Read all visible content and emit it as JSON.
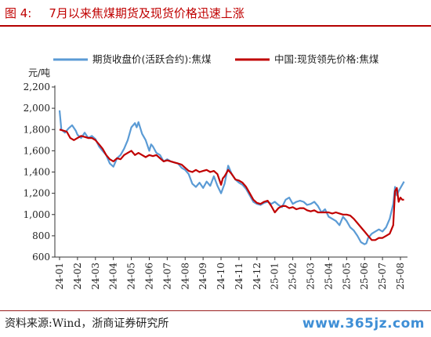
{
  "figure": {
    "label": "图 4:",
    "title": "7月以来焦煤期货及现货价格迅速上涨",
    "source": "资料来源:Wind，浙商证券研究所",
    "watermark": "www.365jz.com"
  },
  "chart_data": {
    "type": "line",
    "ylabel": "元/吨",
    "ylim": [
      600,
      2200
    ],
    "yticks": [
      "600",
      "800",
      "1,000",
      "1,200",
      "1,400",
      "1,600",
      "1,800",
      "2,000",
      "2,200"
    ],
    "xticks": [
      "24-01",
      "24-02",
      "24-03",
      "24-04",
      "24-05",
      "24-06",
      "24-07",
      "24-08",
      "24-09",
      "24-10",
      "24-11",
      "24-12",
      "25-01",
      "25-02",
      "25-03",
      "25-04",
      "25-05",
      "25-06",
      "25-07",
      "25-08"
    ],
    "grid": false,
    "legend": "top",
    "series": [
      {
        "name": "期货收盘价(活跃合约):焦煤",
        "color": "#5b9bd5",
        "points": [
          [
            0.0,
            1980
          ],
          [
            0.1,
            1800
          ],
          [
            0.3,
            1770
          ],
          [
            0.5,
            1810
          ],
          [
            0.7,
            1840
          ],
          [
            0.9,
            1790
          ],
          [
            1.0,
            1750
          ],
          [
            1.2,
            1720
          ],
          [
            1.4,
            1770
          ],
          [
            1.6,
            1720
          ],
          [
            1.8,
            1740
          ],
          [
            2.0,
            1710
          ],
          [
            2.2,
            1640
          ],
          [
            2.4,
            1600
          ],
          [
            2.6,
            1560
          ],
          [
            2.8,
            1480
          ],
          [
            3.0,
            1450
          ],
          [
            3.2,
            1530
          ],
          [
            3.4,
            1560
          ],
          [
            3.6,
            1620
          ],
          [
            3.8,
            1700
          ],
          [
            4.0,
            1820
          ],
          [
            4.2,
            1860
          ],
          [
            4.3,
            1820
          ],
          [
            4.4,
            1870
          ],
          [
            4.6,
            1760
          ],
          [
            4.8,
            1700
          ],
          [
            5.0,
            1600
          ],
          [
            5.1,
            1660
          ],
          [
            5.2,
            1640
          ],
          [
            5.4,
            1580
          ],
          [
            5.6,
            1560
          ],
          [
            5.8,
            1500
          ],
          [
            6.0,
            1520
          ],
          [
            6.2,
            1500
          ],
          [
            6.4,
            1490
          ],
          [
            6.6,
            1480
          ],
          [
            6.8,
            1440
          ],
          [
            7.0,
            1420
          ],
          [
            7.2,
            1380
          ],
          [
            7.4,
            1290
          ],
          [
            7.6,
            1260
          ],
          [
            7.8,
            1300
          ],
          [
            8.0,
            1250
          ],
          [
            8.2,
            1310
          ],
          [
            8.4,
            1270
          ],
          [
            8.6,
            1360
          ],
          [
            8.8,
            1270
          ],
          [
            9.0,
            1200
          ],
          [
            9.2,
            1290
          ],
          [
            9.4,
            1460
          ],
          [
            9.6,
            1380
          ],
          [
            9.8,
            1330
          ],
          [
            10.0,
            1300
          ],
          [
            10.2,
            1280
          ],
          [
            10.4,
            1240
          ],
          [
            10.6,
            1180
          ],
          [
            10.8,
            1120
          ],
          [
            11.0,
            1100
          ],
          [
            11.2,
            1090
          ],
          [
            11.4,
            1110
          ],
          [
            11.6,
            1120
          ],
          [
            11.8,
            1100
          ],
          [
            12.0,
            1120
          ],
          [
            12.2,
            1090
          ],
          [
            12.4,
            1070
          ],
          [
            12.6,
            1140
          ],
          [
            12.8,
            1160
          ],
          [
            13.0,
            1100
          ],
          [
            13.2,
            1120
          ],
          [
            13.4,
            1130
          ],
          [
            13.6,
            1120
          ],
          [
            13.8,
            1090
          ],
          [
            14.0,
            1100
          ],
          [
            14.2,
            1120
          ],
          [
            14.4,
            1080
          ],
          [
            14.6,
            1020
          ],
          [
            14.8,
            1050
          ],
          [
            15.0,
            980
          ],
          [
            15.2,
            960
          ],
          [
            15.4,
            940
          ],
          [
            15.6,
            900
          ],
          [
            15.8,
            980
          ],
          [
            16.0,
            940
          ],
          [
            16.2,
            880
          ],
          [
            16.4,
            850
          ],
          [
            16.6,
            800
          ],
          [
            16.8,
            740
          ],
          [
            17.0,
            720
          ],
          [
            17.1,
            730
          ],
          [
            17.2,
            780
          ],
          [
            17.4,
            820
          ],
          [
            17.6,
            840
          ],
          [
            17.8,
            860
          ],
          [
            18.0,
            840
          ],
          [
            18.2,
            880
          ],
          [
            18.4,
            960
          ],
          [
            18.6,
            1100
          ],
          [
            18.7,
            1260
          ],
          [
            18.8,
            1180
          ],
          [
            18.9,
            1220
          ],
          [
            19.0,
            1250
          ],
          [
            19.1,
            1280
          ],
          [
            19.2,
            1310
          ]
        ]
      },
      {
        "name": "中国:现货领先价格:焦煤",
        "color": "#c00000",
        "points": [
          [
            0.0,
            1800
          ],
          [
            0.2,
            1790
          ],
          [
            0.4,
            1780
          ],
          [
            0.6,
            1720
          ],
          [
            0.8,
            1700
          ],
          [
            1.0,
            1720
          ],
          [
            1.2,
            1740
          ],
          [
            1.4,
            1730
          ],
          [
            1.6,
            1720
          ],
          [
            1.8,
            1720
          ],
          [
            2.0,
            1700
          ],
          [
            2.2,
            1660
          ],
          [
            2.4,
            1620
          ],
          [
            2.6,
            1560
          ],
          [
            2.8,
            1520
          ],
          [
            3.0,
            1500
          ],
          [
            3.2,
            1530
          ],
          [
            3.4,
            1520
          ],
          [
            3.6,
            1560
          ],
          [
            3.8,
            1580
          ],
          [
            4.0,
            1600
          ],
          [
            4.2,
            1560
          ],
          [
            4.4,
            1580
          ],
          [
            4.6,
            1560
          ],
          [
            4.8,
            1540
          ],
          [
            5.0,
            1560
          ],
          [
            5.2,
            1550
          ],
          [
            5.4,
            1560
          ],
          [
            5.6,
            1530
          ],
          [
            5.8,
            1500
          ],
          [
            6.0,
            1510
          ],
          [
            6.2,
            1500
          ],
          [
            6.4,
            1490
          ],
          [
            6.6,
            1480
          ],
          [
            6.8,
            1470
          ],
          [
            7.0,
            1440
          ],
          [
            7.2,
            1410
          ],
          [
            7.4,
            1400
          ],
          [
            7.6,
            1420
          ],
          [
            7.8,
            1400
          ],
          [
            8.0,
            1410
          ],
          [
            8.2,
            1420
          ],
          [
            8.4,
            1400
          ],
          [
            8.6,
            1410
          ],
          [
            8.8,
            1380
          ],
          [
            9.0,
            1280
          ],
          [
            9.1,
            1340
          ],
          [
            9.2,
            1360
          ],
          [
            9.4,
            1420
          ],
          [
            9.6,
            1380
          ],
          [
            9.8,
            1330
          ],
          [
            10.0,
            1320
          ],
          [
            10.2,
            1300
          ],
          [
            10.4,
            1260
          ],
          [
            10.6,
            1200
          ],
          [
            10.8,
            1140
          ],
          [
            11.0,
            1110
          ],
          [
            11.2,
            1100
          ],
          [
            11.4,
            1120
          ],
          [
            11.6,
            1130
          ],
          [
            11.8,
            1080
          ],
          [
            12.0,
            1020
          ],
          [
            12.2,
            1060
          ],
          [
            12.4,
            1080
          ],
          [
            12.6,
            1080
          ],
          [
            12.8,
            1060
          ],
          [
            13.0,
            1070
          ],
          [
            13.2,
            1050
          ],
          [
            13.4,
            1060
          ],
          [
            13.6,
            1060
          ],
          [
            13.8,
            1040
          ],
          [
            14.0,
            1030
          ],
          [
            14.2,
            1040
          ],
          [
            14.4,
            1020
          ],
          [
            14.6,
            1020
          ],
          [
            14.8,
            1020
          ],
          [
            15.0,
            1020
          ],
          [
            15.2,
            1010
          ],
          [
            15.4,
            1020
          ],
          [
            15.6,
            1010
          ],
          [
            15.8,
            1000
          ],
          [
            16.0,
            1000
          ],
          [
            16.2,
            990
          ],
          [
            16.4,
            960
          ],
          [
            16.6,
            920
          ],
          [
            16.8,
            880
          ],
          [
            17.0,
            840
          ],
          [
            17.2,
            800
          ],
          [
            17.4,
            760
          ],
          [
            17.6,
            760
          ],
          [
            17.8,
            780
          ],
          [
            18.0,
            780
          ],
          [
            18.2,
            800
          ],
          [
            18.4,
            820
          ],
          [
            18.6,
            900
          ],
          [
            18.7,
            1220
          ],
          [
            18.8,
            1250
          ],
          [
            18.9,
            1120
          ],
          [
            19.0,
            1160
          ],
          [
            19.1,
            1140
          ],
          [
            19.2,
            1140
          ]
        ]
      }
    ]
  }
}
